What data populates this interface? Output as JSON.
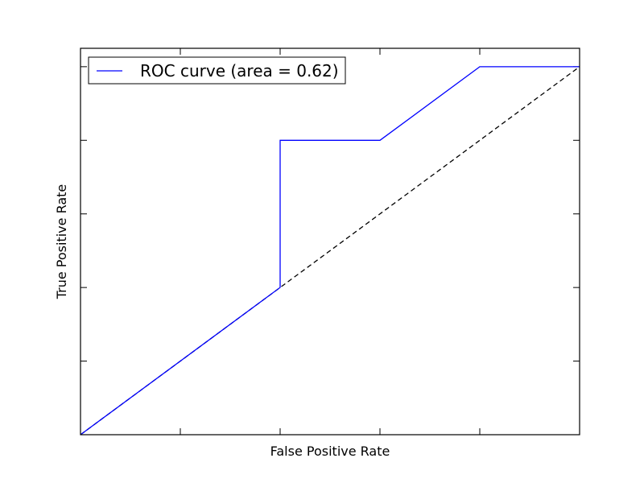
{
  "chart_data": {
    "type": "line",
    "title": "",
    "xlabel": "False Positive Rate",
    "ylabel": "True Positive Rate",
    "xlim": [
      0.0,
      1.0
    ],
    "ylim": [
      0.0,
      1.05
    ],
    "x_ticks": [
      0.0,
      0.2,
      0.4,
      0.6,
      0.8,
      1.0
    ],
    "y_ticks": [
      0.0,
      0.2,
      0.4,
      0.6,
      0.8,
      1.0
    ],
    "tick_labels_shown": false,
    "grid": false,
    "legend_position": "upper-left",
    "series": [
      {
        "name": "ROC curve (area = 0.62)",
        "color": "#0000ff",
        "style": "solid",
        "x": [
          0.0,
          0.4,
          0.4,
          0.6,
          0.8,
          1.0
        ],
        "y": [
          0.0,
          0.4,
          0.8,
          0.8,
          1.0,
          1.0
        ]
      }
    ],
    "reference_line": {
      "color": "#000000",
      "style": "dashed",
      "x": [
        0.0,
        1.0
      ],
      "y": [
        0.0,
        1.0
      ]
    }
  }
}
